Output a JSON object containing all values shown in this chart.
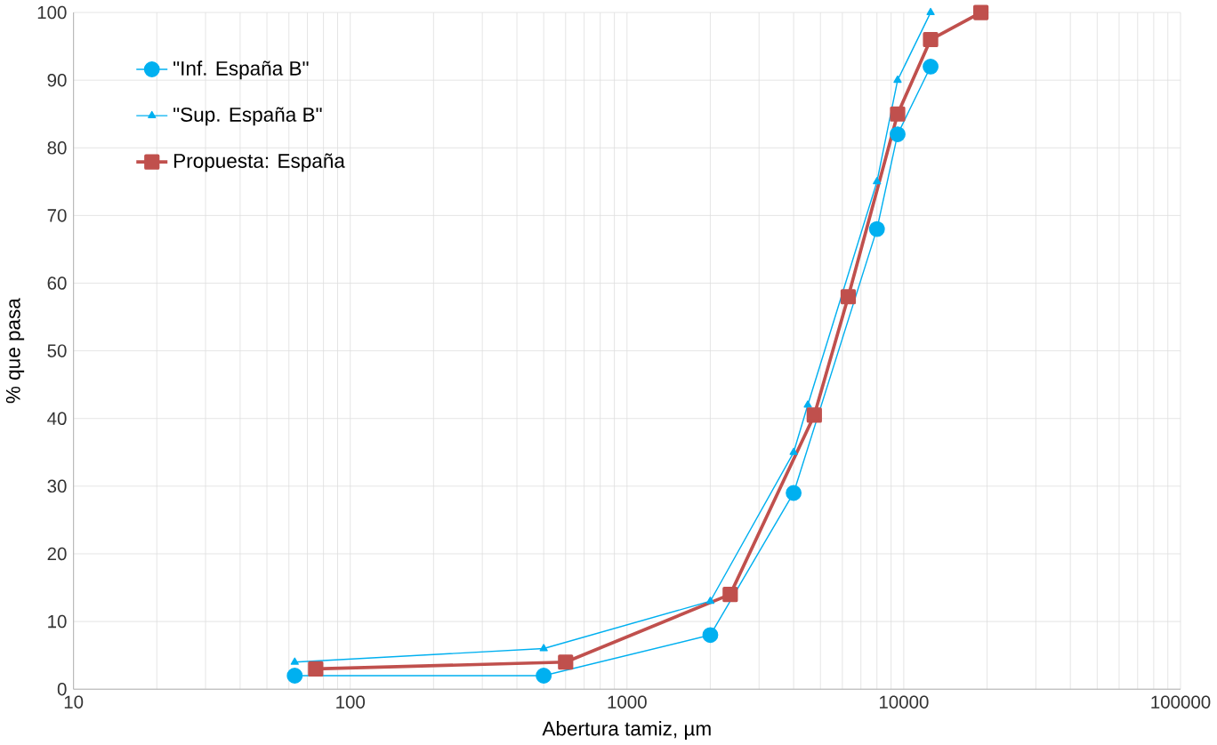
{
  "chart_data": {
    "type": "line",
    "xlabel": "Abertura tamiz, µm",
    "ylabel": "% que pasa",
    "log": "x",
    "grid": true,
    "legend": "top left",
    "xlim": [
      10,
      100000
    ],
    "xticks": [
      10,
      100,
      1000,
      10000,
      100000
    ],
    "ylim": [
      0,
      100
    ],
    "yticks": [
      0,
      10,
      20,
      30,
      40,
      50,
      60,
      70,
      80,
      90,
      100
    ],
    "series": [
      {
        "name": "\"Inf. España B\"",
        "color": "#00b0f0",
        "marker": "circle",
        "x": [
          63,
          500,
          2000,
          4000,
          8000,
          9500,
          12500
        ],
        "values": [
          2,
          2,
          8,
          29,
          68,
          82,
          92
        ]
      },
      {
        "name": "\"Sup. España B\"",
        "color": "#00b0f0",
        "marker": "triangle",
        "x": [
          63,
          500,
          2000,
          4000,
          4500,
          8000,
          9500,
          12500
        ],
        "values": [
          4,
          6,
          13,
          35,
          42,
          75,
          90,
          100
        ]
      },
      {
        "name": "Propuesta: España",
        "color": "#c0504d",
        "marker": "square",
        "x": [
          75,
          600,
          2360,
          4750,
          6300,
          9500,
          12500,
          19000
        ],
        "values": [
          3,
          4,
          14,
          40.5,
          58,
          85,
          96,
          100
        ]
      }
    ]
  }
}
